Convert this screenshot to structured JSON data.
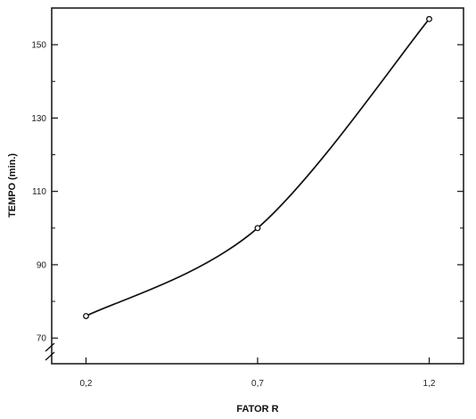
{
  "chart_data": {
    "type": "line",
    "title": "",
    "xlabel": "FATOR R",
    "ylabel": "TEMPO (min.)",
    "x": [
      0.2,
      0.7,
      1.2
    ],
    "x_tick_labels": [
      "0,2",
      "0,7",
      "1,2"
    ],
    "xlim": [
      0.1,
      1.3
    ],
    "y_ticks": [
      70,
      90,
      110,
      130,
      150
    ],
    "ylim": [
      63,
      160
    ],
    "y_axis_break": true,
    "grid": false,
    "series": [
      {
        "values": [
          76,
          100,
          157
        ],
        "color": "#111111",
        "marker": "open-circle"
      }
    ]
  }
}
